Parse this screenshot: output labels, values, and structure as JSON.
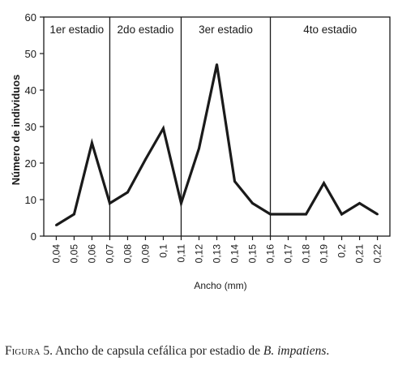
{
  "chart_data": {
    "type": "line",
    "xlabel": "Ancho (mm)",
    "ylabel": "Número de individuos",
    "ylim": [
      0,
      60
    ],
    "yticks": [
      0,
      10,
      20,
      30,
      40,
      50,
      60
    ],
    "categories": [
      "0,04",
      "0,05",
      "0,06",
      "0,07",
      "0,08",
      "0,09",
      "0,1",
      "0,11",
      "0,12",
      "0,13",
      "0,14",
      "0,15",
      "0,16",
      "0,17",
      "0,18",
      "0,19",
      "0,2",
      "0,21",
      "0,22"
    ],
    "values": [
      3,
      6,
      25.5,
      9,
      12,
      21,
      29.5,
      9,
      24,
      47,
      15,
      9,
      6,
      6,
      6,
      14.5,
      6,
      9,
      6
    ],
    "stages": [
      {
        "label": "1er estadio",
        "start": "0,04",
        "end": "0,07"
      },
      {
        "label": "2do estadio",
        "start": "0,07",
        "end": "0,11"
      },
      {
        "label": "3er estadio",
        "start": "0,11",
        "end": "0,16"
      },
      {
        "label": "4to estadio",
        "start": "0,16",
        "end": "0,22"
      }
    ],
    "grid": false
  },
  "caption": {
    "prefix": "Figura 5.",
    "text": " Ancho de capsula cefálica por estadio de ",
    "species_genus": "B.",
    "species_name": "impatiens",
    "end": "."
  },
  "colors": {
    "line": "#1a1a1a",
    "axis": "#1a1a1a"
  }
}
